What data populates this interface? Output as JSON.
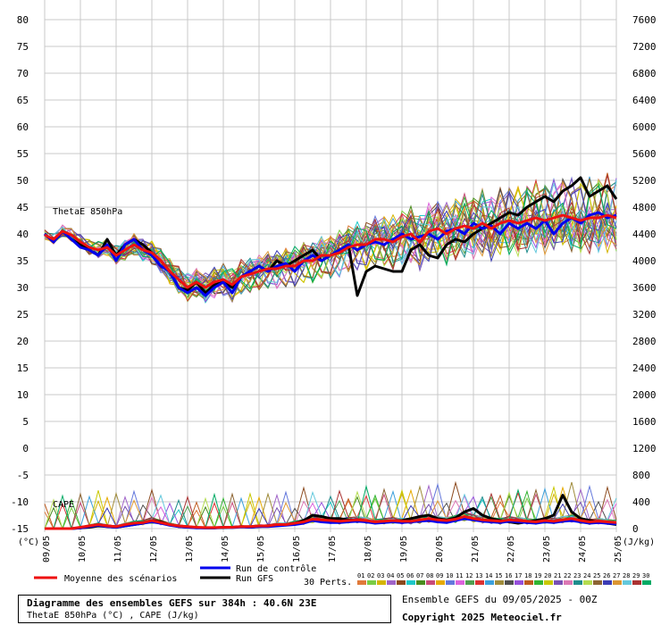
{
  "chart_data": {
    "type": "line",
    "title": "Diagramme des ensembles GEFS sur 384h : 40.6N 23E",
    "subtitle": "ThetaE 850hPa (°C) , CAPE (J/kg)",
    "left_unit": "(°C)",
    "right_unit": "(J/kg)",
    "theta_label": "ThetaE 850hPa",
    "cape_label": "CAPE",
    "left_ticks": [
      "80",
      "75",
      "70",
      "65",
      "60",
      "55",
      "50",
      "45",
      "40",
      "35",
      "30",
      "25",
      "20",
      "15",
      "10",
      "5",
      "0",
      "-5",
      "-10",
      "-15"
    ],
    "right_ticks": [
      "7600",
      "7200",
      "6800",
      "6400",
      "6000",
      "5600",
      "5200",
      "4800",
      "4400",
      "4000",
      "3600",
      "3200",
      "2800",
      "2400",
      "2000",
      "1600",
      "1200",
      "800",
      "400",
      "0"
    ],
    "left_ylim": [
      -15,
      80
    ],
    "right_ylim": [
      0,
      7600
    ],
    "x_labels": [
      "09/05",
      "10/05",
      "11/05",
      "12/05",
      "13/05",
      "14/05",
      "15/05",
      "16/05",
      "17/05",
      "18/05",
      "19/05",
      "20/05",
      "21/05",
      "22/05",
      "23/05",
      "24/05",
      "25/05"
    ],
    "grid": true,
    "series": [
      {
        "name": "Moyenne des scénarios",
        "color": "#ee1111",
        "width": 3,
        "thetae": [
          39.8,
          39.0,
          40.5,
          39.8,
          38.5,
          37.5,
          37.0,
          37.5,
          36.0,
          37.0,
          38.0,
          37.0,
          36.5,
          35.0,
          33.0,
          31.5,
          30.0,
          31.0,
          30.0,
          31.0,
          31.5,
          30.5,
          32.0,
          32.5,
          33.0,
          33.5,
          33.5,
          34.0,
          34.0,
          35.0,
          35.0,
          36.0,
          36.0,
          36.5,
          37.5,
          38.0,
          38.0,
          39.0,
          39.0,
          38.5,
          39.5,
          40.0,
          38.5,
          40.5,
          41.0,
          40.0,
          41.0,
          41.5,
          41.0,
          42.0,
          41.0,
          42.0,
          42.5,
          42.0,
          42.5,
          43.0,
          42.5,
          43.0,
          43.5,
          43.0,
          42.5,
          43.0,
          43.0,
          43.5,
          43.0
        ],
        "cape": [
          0,
          0,
          0,
          0,
          20,
          40,
          60,
          40,
          30,
          60,
          80,
          90,
          120,
          90,
          60,
          40,
          30,
          20,
          15,
          15,
          20,
          20,
          30,
          30,
          40,
          40,
          60,
          60,
          80,
          100,
          140,
          130,
          120,
          110,
          120,
          130,
          120,
          100,
          110,
          120,
          110,
          110,
          130,
          150,
          130,
          120,
          140,
          180,
          150,
          130,
          120,
          110,
          130,
          120,
          110,
          100,
          120,
          110,
          130,
          150,
          120,
          100,
          110,
          100,
          90
        ]
      },
      {
        "name": "Run de contrôle",
        "color": "#0000ee",
        "width": 3,
        "thetae": [
          40.0,
          38.5,
          40.5,
          39.0,
          37.5,
          37.0,
          36.0,
          38.0,
          35.0,
          38.0,
          39.0,
          37.0,
          36.0,
          34.0,
          33.0,
          30.0,
          29.0,
          30.0,
          28.5,
          30.0,
          31.0,
          29.0,
          32.0,
          33.0,
          34.0,
          33.0,
          34.0,
          34.5,
          33.0,
          35.0,
          36.0,
          35.0,
          36.0,
          37.0,
          38.0,
          37.0,
          38.0,
          38.5,
          38.0,
          39.0,
          40.0,
          39.0,
          39.5,
          40.0,
          39.0,
          40.5,
          41.0,
          40.0,
          42.0,
          41.0,
          41.5,
          40.0,
          42.0,
          41.0,
          42.0,
          41.0,
          42.5,
          40.0,
          42.0,
          43.0,
          42.0,
          43.5,
          44.0,
          43.0,
          43.5
        ],
        "cape": [
          0,
          0,
          0,
          0,
          10,
          30,
          50,
          30,
          20,
          40,
          60,
          80,
          100,
          80,
          50,
          30,
          20,
          10,
          10,
          10,
          20,
          15,
          25,
          20,
          30,
          30,
          40,
          50,
          60,
          80,
          120,
          100,
          90,
          90,
          100,
          110,
          100,
          80,
          90,
          100,
          90,
          100,
          110,
          120,
          100,
          90,
          120,
          150,
          130,
          110,
          100,
          90,
          110,
          100,
          90,
          80,
          100,
          90,
          110,
          120,
          100,
          80,
          90,
          80,
          70
        ]
      },
      {
        "name": "Run GFS",
        "color": "#000000",
        "width": 3,
        "thetae": [
          40.0,
          38.5,
          40.5,
          39.0,
          38.0,
          37.0,
          36.0,
          39.0,
          36.0,
          38.0,
          39.0,
          38.0,
          36.5,
          35.0,
          33.0,
          30.0,
          29.5,
          31.0,
          29.0,
          30.5,
          31.0,
          30.0,
          32.0,
          33.0,
          34.0,
          33.0,
          35.0,
          34.0,
          35.0,
          36.0,
          37.0,
          35.0,
          36.0,
          37.0,
          38.0,
          28.5,
          33.0,
          34.0,
          33.5,
          33.0,
          33.0,
          37.0,
          38.0,
          36.0,
          35.5,
          38.0,
          39.0,
          38.5,
          40.0,
          41.0,
          42.0,
          43.0,
          44.0,
          43.5,
          45.0,
          46.0,
          47.0,
          46.0,
          48.0,
          49.0,
          50.5,
          47.0,
          48.0,
          49.0,
          46.5
        ],
        "cape": [
          0,
          0,
          0,
          0,
          10,
          20,
          40,
          30,
          20,
          40,
          60,
          80,
          120,
          100,
          60,
          30,
          20,
          15,
          10,
          10,
          15,
          20,
          30,
          20,
          30,
          40,
          50,
          60,
          80,
          120,
          200,
          180,
          150,
          150,
          130,
          120,
          110,
          100,
          90,
          110,
          120,
          150,
          180,
          200,
          150,
          130,
          160,
          250,
          300,
          200,
          150,
          120,
          100,
          80,
          100,
          120,
          150,
          200,
          500,
          250,
          150,
          120,
          100,
          80,
          60
        ]
      }
    ],
    "pert_count": 30,
    "pert_colors": [
      "#e07a3a",
      "#7acc44",
      "#d4b400",
      "#a064c8",
      "#8c4a1e",
      "#1ec8c8",
      "#4a8c1e",
      "#c84a78",
      "#e6aa00",
      "#6478dc",
      "#dc64dc",
      "#50a050",
      "#dc3232",
      "#3ca0dc",
      "#a08c3c",
      "#505050",
      "#9650dc",
      "#be5a1e",
      "#32b432",
      "#c8c800",
      "#7850b4",
      "#dc78b4",
      "#1e8c8c",
      "#b4dc50",
      "#8c6432",
      "#3c3cb4",
      "#dc9632",
      "#64c8dc",
      "#aa3232",
      "#00aa64"
    ]
  },
  "legend": {
    "mean": "Moyenne des scénarios",
    "control": "Run de contrôle",
    "gfs": "Run GFS",
    "perts_label": "30 Perts.",
    "pert_numbers": [
      "01",
      "02",
      "03",
      "04",
      "05",
      "06",
      "07",
      "08",
      "09",
      "10",
      "11",
      "12",
      "13",
      "14",
      "15",
      "16",
      "17",
      "18",
      "19",
      "20",
      "21",
      "22",
      "23",
      "24",
      "25",
      "26",
      "27",
      "28",
      "29",
      "30"
    ]
  },
  "info": {
    "title": "Diagramme des ensembles GEFS sur 384h : 40.6N 23E",
    "subtitle": "ThetaE 850hPa (°C) , CAPE (J/kg)",
    "ensemble_run": "Ensemble GEFS du 09/05/2025 - 00Z",
    "copyright": "Copyright 2025 Meteociel.fr"
  }
}
